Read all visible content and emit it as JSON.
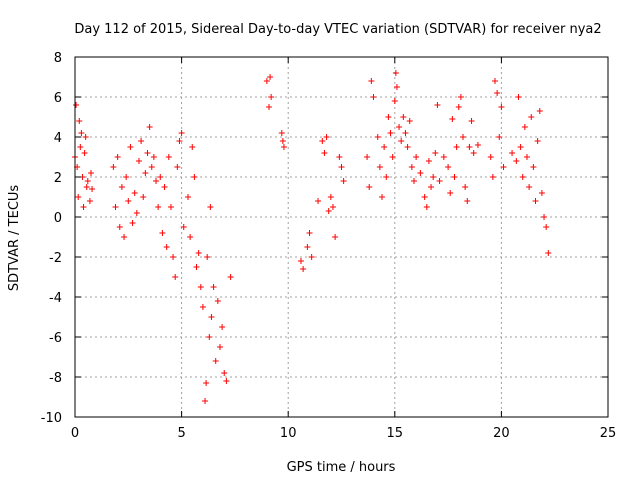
{
  "chart_data": {
    "type": "scatter",
    "title": "Day 112 of 2015, Sidereal Day-to-day VTEC variation (SDTVAR) for receiver nya2",
    "xlabel": "GPS time / hours",
    "ylabel": "SDTVAR / TECUs",
    "xlim": [
      0,
      25
    ],
    "ylim": [
      -10,
      8
    ],
    "x_ticks": [
      0,
      5,
      10,
      15,
      20,
      25
    ],
    "y_ticks": [
      -10,
      -8,
      -6,
      -4,
      -2,
      0,
      2,
      4,
      6,
      8
    ],
    "grid": true,
    "marker": "+",
    "marker_color": "#ff0000",
    "series": [
      {
        "name": "nya2",
        "points": [
          [
            0.0,
            3.0
          ],
          [
            0.05,
            5.6
          ],
          [
            0.1,
            2.5
          ],
          [
            0.15,
            1.0
          ],
          [
            0.2,
            4.8
          ],
          [
            0.25,
            3.5
          ],
          [
            0.3,
            4.2
          ],
          [
            0.35,
            2.0
          ],
          [
            0.4,
            0.5
          ],
          [
            0.45,
            3.2
          ],
          [
            0.5,
            4.0
          ],
          [
            0.55,
            1.5
          ],
          [
            0.6,
            1.8
          ],
          [
            0.7,
            0.8
          ],
          [
            0.75,
            2.2
          ],
          [
            0.8,
            1.4
          ],
          [
            1.8,
            2.5
          ],
          [
            1.9,
            0.5
          ],
          [
            2.0,
            3.0
          ],
          [
            2.1,
            -0.5
          ],
          [
            2.2,
            1.5
          ],
          [
            2.3,
            -1.0
          ],
          [
            2.4,
            2.0
          ],
          [
            2.5,
            0.8
          ],
          [
            2.6,
            3.5
          ],
          [
            2.7,
            -0.3
          ],
          [
            2.8,
            1.2
          ],
          [
            2.9,
            0.2
          ],
          [
            3.0,
            2.8
          ],
          [
            3.1,
            3.8
          ],
          [
            3.2,
            1.0
          ],
          [
            3.3,
            2.2
          ],
          [
            3.4,
            3.2
          ],
          [
            3.5,
            4.5
          ],
          [
            3.6,
            2.5
          ],
          [
            3.7,
            3.0
          ],
          [
            3.8,
            1.8
          ],
          [
            3.9,
            0.5
          ],
          [
            4.0,
            2.0
          ],
          [
            4.1,
            -0.8
          ],
          [
            4.2,
            1.5
          ],
          [
            4.3,
            -1.5
          ],
          [
            4.4,
            3.0
          ],
          [
            4.5,
            0.5
          ],
          [
            4.6,
            -2.0
          ],
          [
            4.7,
            -3.0
          ],
          [
            4.8,
            2.5
          ],
          [
            4.9,
            3.8
          ],
          [
            5.0,
            4.2
          ],
          [
            5.1,
            -0.5
          ],
          [
            5.3,
            1.0
          ],
          [
            5.4,
            -1.0
          ],
          [
            5.5,
            3.5
          ],
          [
            5.6,
            2.0
          ],
          [
            5.7,
            -2.5
          ],
          [
            5.8,
            -1.8
          ],
          [
            5.9,
            -3.5
          ],
          [
            6.0,
            -4.5
          ],
          [
            6.1,
            -9.2
          ],
          [
            6.15,
            -8.3
          ],
          [
            6.2,
            -2.0
          ],
          [
            6.3,
            -6.0
          ],
          [
            6.35,
            0.5
          ],
          [
            6.4,
            -5.0
          ],
          [
            6.5,
            -3.5
          ],
          [
            6.6,
            -7.2
          ],
          [
            6.7,
            -4.2
          ],
          [
            6.8,
            -6.5
          ],
          [
            6.9,
            -5.5
          ],
          [
            7.0,
            -7.8
          ],
          [
            7.1,
            -8.2
          ],
          [
            7.3,
            -3.0
          ],
          [
            9.0,
            6.8
          ],
          [
            9.1,
            5.5
          ],
          [
            9.15,
            7.0
          ],
          [
            9.2,
            6.0
          ],
          [
            9.7,
            4.2
          ],
          [
            9.75,
            3.8
          ],
          [
            9.8,
            3.5
          ],
          [
            10.6,
            -2.2
          ],
          [
            10.7,
            -2.6
          ],
          [
            10.9,
            -1.5
          ],
          [
            11.0,
            -0.8
          ],
          [
            11.1,
            -2.0
          ],
          [
            11.4,
            0.8
          ],
          [
            11.6,
            3.8
          ],
          [
            11.7,
            3.2
          ],
          [
            11.8,
            4.0
          ],
          [
            11.9,
            0.3
          ],
          [
            12.0,
            1.0
          ],
          [
            12.1,
            0.5
          ],
          [
            12.2,
            -1.0
          ],
          [
            12.4,
            3.0
          ],
          [
            12.5,
            2.5
          ],
          [
            12.6,
            1.8
          ],
          [
            13.7,
            3.0
          ],
          [
            13.8,
            1.5
          ],
          [
            13.9,
            6.8
          ],
          [
            14.0,
            6.0
          ],
          [
            14.2,
            4.0
          ],
          [
            14.3,
            2.5
          ],
          [
            14.4,
            1.0
          ],
          [
            14.5,
            3.5
          ],
          [
            14.6,
            2.0
          ],
          [
            14.7,
            5.0
          ],
          [
            14.8,
            4.2
          ],
          [
            14.9,
            3.0
          ],
          [
            15.0,
            5.8
          ],
          [
            15.05,
            7.2
          ],
          [
            15.1,
            6.5
          ],
          [
            15.2,
            4.5
          ],
          [
            15.3,
            3.8
          ],
          [
            15.4,
            5.0
          ],
          [
            15.5,
            4.2
          ],
          [
            15.6,
            3.5
          ],
          [
            15.7,
            4.8
          ],
          [
            15.8,
            2.5
          ],
          [
            15.9,
            1.8
          ],
          [
            16.0,
            3.0
          ],
          [
            16.2,
            2.2
          ],
          [
            16.4,
            1.0
          ],
          [
            16.5,
            0.5
          ],
          [
            16.6,
            2.8
          ],
          [
            16.7,
            1.5
          ],
          [
            16.8,
            2.0
          ],
          [
            16.9,
            3.2
          ],
          [
            17.0,
            5.6
          ],
          [
            17.1,
            1.8
          ],
          [
            17.3,
            3.0
          ],
          [
            17.5,
            2.5
          ],
          [
            17.6,
            1.2
          ],
          [
            17.7,
            4.9
          ],
          [
            17.8,
            2.0
          ],
          [
            17.9,
            3.5
          ],
          [
            18.0,
            5.5
          ],
          [
            18.1,
            6.0
          ],
          [
            18.2,
            4.0
          ],
          [
            18.3,
            1.5
          ],
          [
            18.4,
            0.8
          ],
          [
            18.5,
            3.5
          ],
          [
            18.6,
            4.8
          ],
          [
            18.7,
            3.2
          ],
          [
            18.9,
            3.6
          ],
          [
            19.5,
            3.0
          ],
          [
            19.6,
            2.0
          ],
          [
            19.7,
            6.8
          ],
          [
            19.8,
            6.2
          ],
          [
            19.9,
            4.0
          ],
          [
            20.0,
            5.5
          ],
          [
            20.1,
            2.5
          ],
          [
            20.5,
            3.2
          ],
          [
            20.7,
            2.8
          ],
          [
            20.8,
            6.0
          ],
          [
            20.9,
            3.5
          ],
          [
            21.0,
            2.0
          ],
          [
            21.1,
            4.5
          ],
          [
            21.2,
            3.0
          ],
          [
            21.3,
            1.5
          ],
          [
            21.4,
            5.0
          ],
          [
            21.5,
            2.5
          ],
          [
            21.6,
            0.8
          ],
          [
            21.7,
            3.8
          ],
          [
            21.8,
            5.3
          ],
          [
            21.9,
            1.2
          ],
          [
            22.0,
            0.0
          ],
          [
            22.1,
            -0.5
          ],
          [
            22.2,
            -1.8
          ]
        ]
      }
    ]
  }
}
